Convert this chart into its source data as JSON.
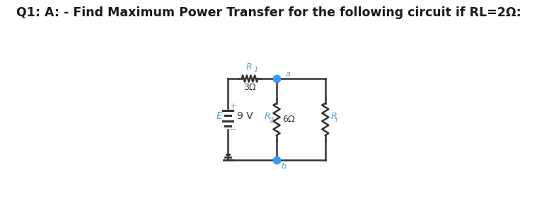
{
  "title": "Q1: A: - Find Maximum Power Transfer for the following circuit if RL=2Ω:",
  "title_fontsize": 12.5,
  "title_fontweight": "bold",
  "bg_color": "#ffffff",
  "line_color": "#333333",
  "node_color": "#3399ff",
  "label_color": "#5599cc",
  "R1_label": "R",
  "R1_sub": "1",
  "R1_value": "3Ω",
  "R2_label": "R",
  "R2_sub": "2",
  "R2_value": "6Ω",
  "RL_label": "R",
  "RL_sub": "l",
  "E_label": "E",
  "E_value": "9 V",
  "plus_label": "+",
  "minus_label": "-",
  "node_a_label": "a",
  "node_b_label": "b",
  "figsize": [
    7.59,
    2.98
  ],
  "dpi": 100
}
